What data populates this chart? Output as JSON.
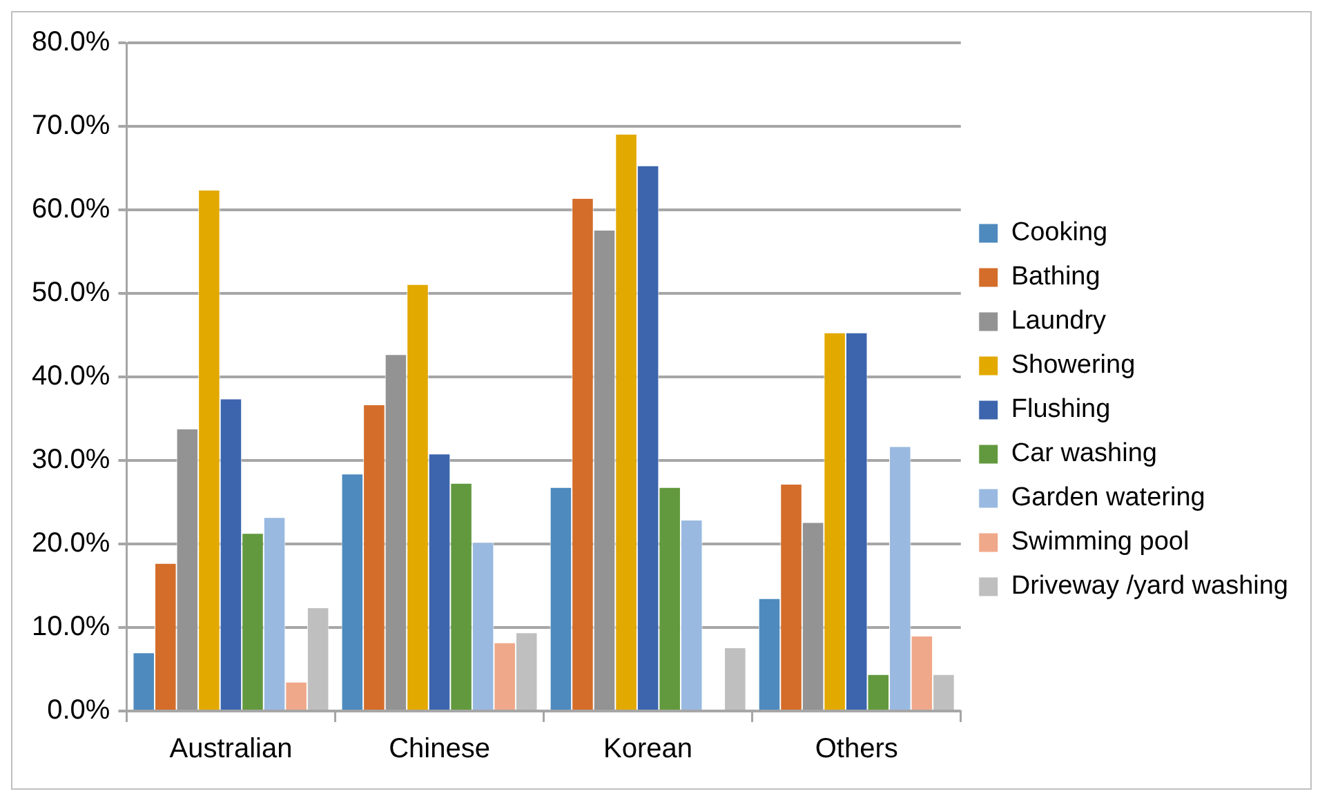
{
  "chart_data": {
    "type": "bar",
    "categories": [
      "Australian",
      "Chinese",
      "Korean",
      "Others"
    ],
    "series": [
      {
        "name": "Cooking",
        "color": "#4e8abe",
        "values": [
          7.0,
          28.4,
          26.8,
          13.5
        ]
      },
      {
        "name": "Bathing",
        "color": "#d46d2a",
        "values": [
          17.7,
          36.7,
          61.4,
          27.2
        ]
      },
      {
        "name": "Laundry",
        "color": "#939393",
        "values": [
          33.8,
          42.7,
          57.6,
          22.6
        ]
      },
      {
        "name": "Showering",
        "color": "#e2a900",
        "values": [
          62.4,
          51.1,
          69.1,
          45.3
        ]
      },
      {
        "name": "Flushing",
        "color": "#3c65ad",
        "values": [
          37.4,
          30.8,
          65.3,
          45.3
        ]
      },
      {
        "name": "Car washing",
        "color": "#62993e",
        "values": [
          21.3,
          27.3,
          26.8,
          4.4
        ]
      },
      {
        "name": "Garden watering",
        "color": "#99b9e0",
        "values": [
          23.2,
          20.2,
          22.9,
          31.7
        ]
      },
      {
        "name": "Swimming pool",
        "color": "#f0a88a",
        "values": [
          3.5,
          8.2,
          0,
          9.0
        ]
      },
      {
        "name": "Driveway /yard washing",
        "color": "#bfbfbf",
        "values": [
          12.4,
          9.4,
          7.6,
          4.4
        ]
      }
    ],
    "ylim": [
      0,
      80
    ],
    "yticks": [
      {
        "value": 0,
        "label": "0.0%"
      },
      {
        "value": 10,
        "label": "10.0%"
      },
      {
        "value": 20,
        "label": "20.0%"
      },
      {
        "value": 30,
        "label": "30.0%"
      },
      {
        "value": 40,
        "label": "40.0%"
      },
      {
        "value": 50,
        "label": "50.0%"
      },
      {
        "value": 60,
        "label": "60.0%"
      },
      {
        "value": 70,
        "label": "70.0%"
      },
      {
        "value": 80,
        "label": "80.0%"
      }
    ],
    "grid": "y",
    "legend": "right"
  }
}
